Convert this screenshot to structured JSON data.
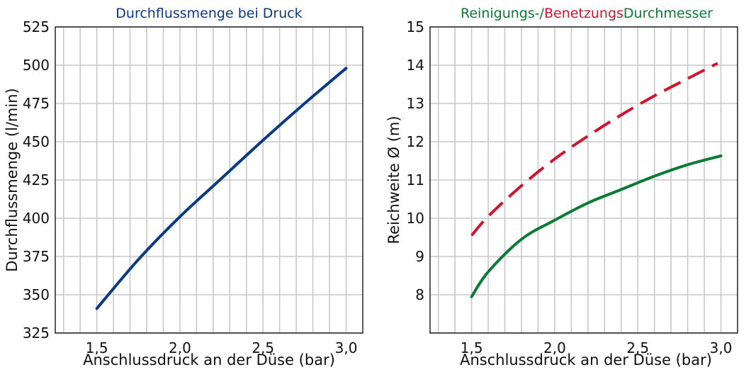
{
  "chart_data": [
    {
      "type": "line",
      "title": "Durchflussmenge bei Druck",
      "title_color": "#0b3a84",
      "xlabel": "Anschlussdruck an der Düse (bar)",
      "ylabel": "Durchflussmenge (l/min)",
      "xlim": [
        1.25,
        3.1
      ],
      "ylim": [
        325,
        525
      ],
      "x_ticks": [
        1.5,
        2.0,
        2.5,
        3.0
      ],
      "x_tick_labels": [
        "1,5",
        "2,0",
        "2,5",
        "3,0"
      ],
      "x_grid": [
        1.3,
        1.4,
        1.5,
        1.6,
        1.7,
        1.8,
        1.9,
        2.0,
        2.1,
        2.2,
        2.3,
        2.4,
        2.5,
        2.6,
        2.7,
        2.8,
        2.9,
        3.0
      ],
      "y_ticks": [
        325,
        350,
        375,
        400,
        425,
        450,
        475,
        500,
        525
      ],
      "y_tick_labels": [
        "325",
        "350",
        "375",
        "400",
        "425",
        "450",
        "475",
        "500",
        "525"
      ],
      "grid": true,
      "series": [
        {
          "color": "#0b3a84",
          "dash": "solid",
          "x": [
            1.5,
            1.75,
            2.0,
            2.25,
            2.5,
            2.75,
            3.0
          ],
          "y": [
            341,
            373,
            401,
            426,
            451,
            475,
            498
          ]
        }
      ]
    },
    {
      "type": "line",
      "title_parts": [
        {
          "text": "Reinigungs-/",
          "color": "#0a7a34"
        },
        {
          "text": "Benetzungs",
          "color": "#d2132c"
        },
        {
          "text": "Durchmesser",
          "color": "#0a7a34"
        }
      ],
      "xlabel": "Anschlussdruck an der Düse (bar)",
      "ylabel": "Reichweite Ø (m)",
      "xlim": [
        1.25,
        3.1
      ],
      "ylim": [
        7,
        15
      ],
      "x_ticks": [
        1.5,
        2.0,
        2.5,
        3.0
      ],
      "x_tick_labels": [
        "1,5",
        "2,0",
        "2,5",
        "3,0"
      ],
      "x_grid": [
        1.3,
        1.4,
        1.5,
        1.6,
        1.7,
        1.8,
        1.9,
        2.0,
        2.1,
        2.2,
        2.3,
        2.4,
        2.5,
        2.6,
        2.7,
        2.8,
        2.9,
        3.0
      ],
      "y_ticks": [
        8,
        9,
        10,
        11,
        12,
        13,
        14,
        15
      ],
      "y_tick_labels": [
        "8",
        "9",
        "10",
        "11",
        "12",
        "13",
        "14",
        "15"
      ],
      "y_grid": [
        7,
        8,
        9,
        10,
        11,
        12,
        13,
        14,
        15
      ],
      "grid": true,
      "series": [
        {
          "color": "#d2132c",
          "dash": "dashed",
          "x": [
            1.5,
            1.6,
            1.8,
            2.0,
            2.2,
            2.4,
            2.6,
            2.8,
            2.98
          ],
          "y": [
            9.55,
            10.05,
            10.85,
            11.55,
            12.15,
            12.7,
            13.2,
            13.65,
            14.05
          ]
        },
        {
          "color": "#0a7a34",
          "dash": "solid",
          "x": [
            1.5,
            1.6,
            1.8,
            2.0,
            2.2,
            2.4,
            2.6,
            2.8,
            3.0
          ],
          "y": [
            7.95,
            8.6,
            9.45,
            9.95,
            10.4,
            10.75,
            11.1,
            11.4,
            11.63
          ]
        }
      ]
    }
  ]
}
